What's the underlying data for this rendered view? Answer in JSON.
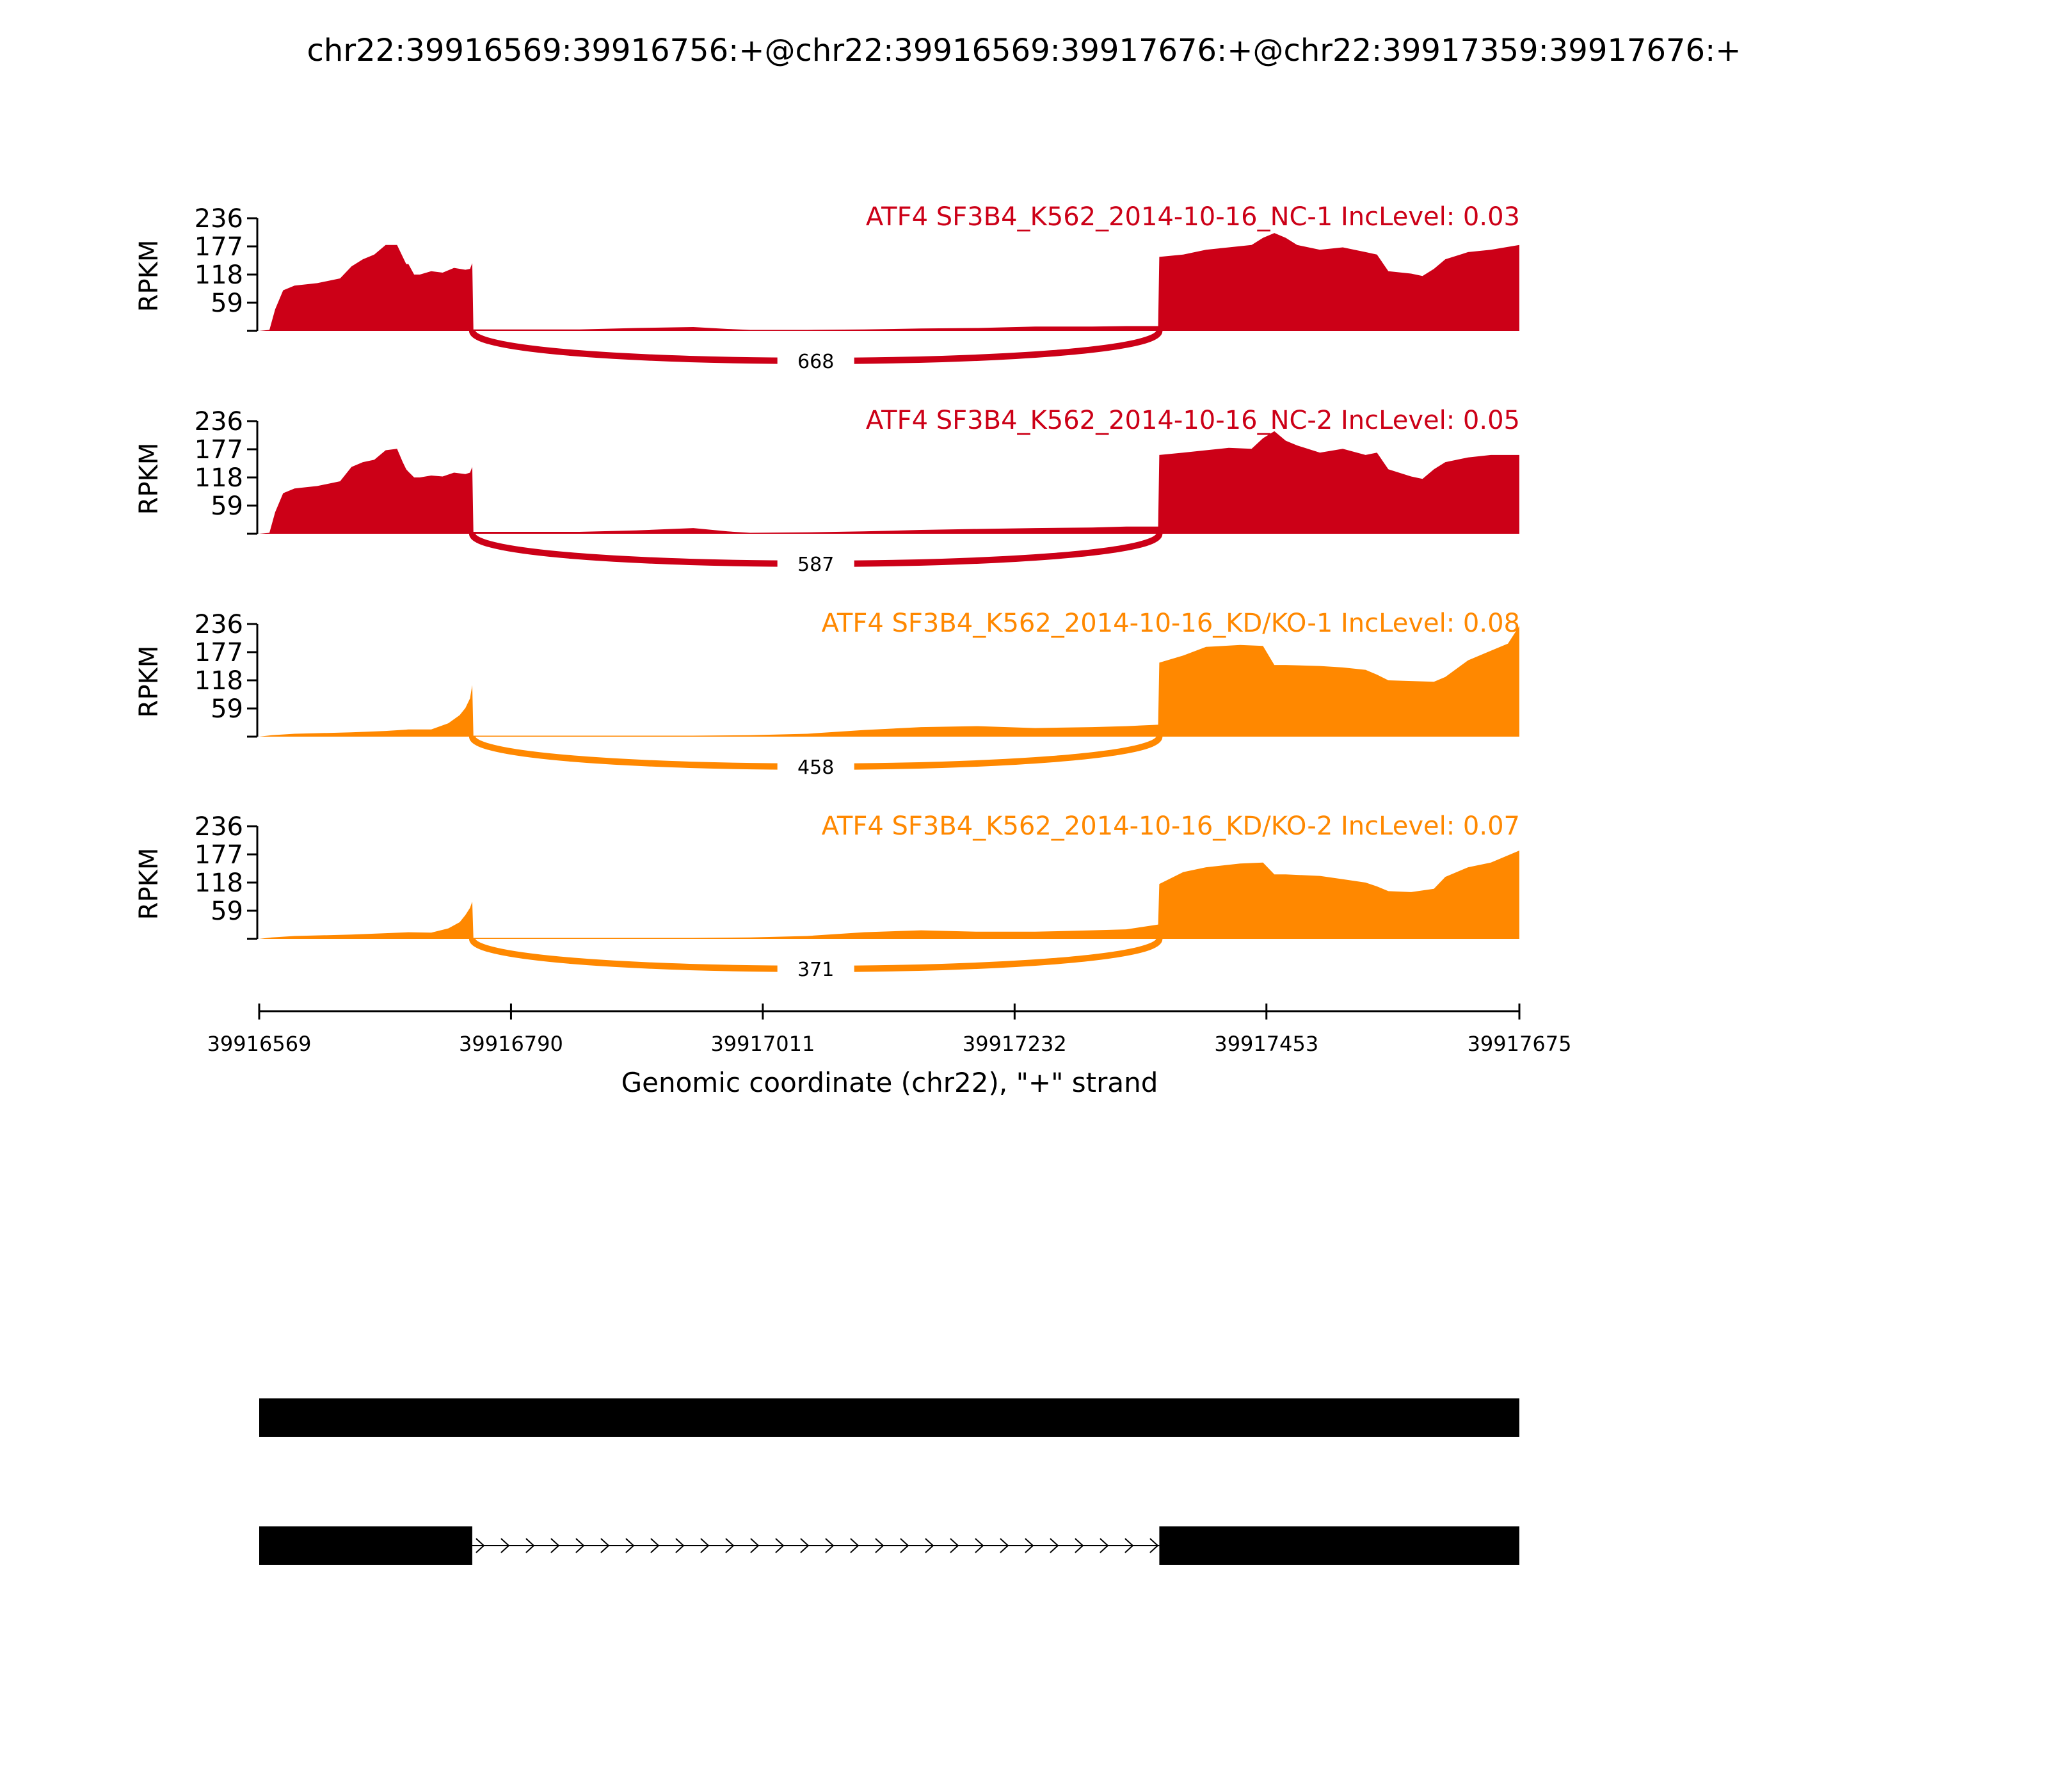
{
  "title": "chr22:39916569:39916756:+@chr22:39916569:39917676:+@chr22:39917359:39917676:+",
  "colors": {
    "nc": "#cc0017",
    "kd": "#ff8800",
    "axis": "#000000",
    "gene": "#000000"
  },
  "chart_data": {
    "type": "area",
    "title": "chr22:39916569:39916756:+@chr22:39916569:39917676:+@chr22:39917359:39917676:+",
    "xlabel": "Genomic coordinate (chr22), \"+\" strand",
    "ylabel": "RPKM",
    "xlim": [
      39916569,
      39917675
    ],
    "ylim": [
      0,
      236
    ],
    "xticks": [
      "39916569",
      "39916790",
      "39917011",
      "39917232",
      "39917453",
      "39917675"
    ],
    "yticks": [
      "59",
      "118",
      "177",
      "236"
    ],
    "series": [
      {
        "name": "ATF4 SF3B4_K562_2014-10-16_NC-1 IncLevel: 0.03",
        "group": "nc",
        "junction": {
          "start": 39916756,
          "end": 39917359,
          "count": "668"
        },
        "x": [
          39916569,
          39916578,
          39916583,
          39916590,
          39916600,
          39916620,
          39916640,
          39916650,
          39916660,
          39916670,
          39916680,
          39916690,
          39916695,
          39916698,
          39916700,
          39916705,
          39916710,
          39916720,
          39916730,
          39916740,
          39916750,
          39916754,
          39916756,
          39916757,
          39916780,
          39916800,
          39916850,
          39916900,
          39916950,
          39916980,
          39917000,
          39917050,
          39917100,
          39917150,
          39917200,
          39917250,
          39917300,
          39917330,
          39917358,
          39917359,
          39917380,
          39917400,
          39917420,
          39917440,
          39917450,
          39917460,
          39917470,
          39917480,
          39917500,
          39917520,
          39917540,
          39917550,
          39917560,
          39917580,
          39917590,
          39917600,
          39917610,
          39917630,
          39917650,
          39917675
        ],
        "y": [
          0,
          2,
          45,
          85,
          95,
          100,
          110,
          135,
          150,
          160,
          180,
          180,
          155,
          140,
          140,
          118,
          118,
          125,
          122,
          132,
          128,
          130,
          142,
          3,
          3,
          3,
          3,
          6,
          8,
          4,
          2,
          2,
          3,
          5,
          6,
          9,
          9,
          10,
          10,
          155,
          160,
          170,
          175,
          180,
          195,
          205,
          195,
          180,
          170,
          175,
          165,
          160,
          125,
          120,
          115,
          130,
          150,
          165,
          170,
          180
        ]
      },
      {
        "name": "ATF4 SF3B4_K562_2014-10-16_NC-2 IncLevel: 0.05",
        "group": "nc",
        "junction": {
          "start": 39916756,
          "end": 39917359,
          "count": "587"
        },
        "x": [
          39916569,
          39916578,
          39916583,
          39916590,
          39916600,
          39916620,
          39916640,
          39916650,
          39916660,
          39916670,
          39916680,
          39916690,
          39916695,
          39916698,
          39916700,
          39916705,
          39916710,
          39916720,
          39916730,
          39916740,
          39916750,
          39916754,
          39916756,
          39916757,
          39916780,
          39916800,
          39916850,
          39916900,
          39916950,
          39916980,
          39917000,
          39917050,
          39917100,
          39917150,
          39917200,
          39917250,
          39917300,
          39917330,
          39917358,
          39917359,
          39917380,
          39917400,
          39917420,
          39917440,
          39917450,
          39917460,
          39917470,
          39917480,
          39917500,
          39917520,
          39917540,
          39917550,
          39917560,
          39917580,
          39917590,
          39917600,
          39917610,
          39917630,
          39917650,
          39917675
        ],
        "y": [
          0,
          2,
          45,
          85,
          95,
          100,
          110,
          140,
          150,
          155,
          175,
          178,
          150,
          135,
          130,
          118,
          118,
          122,
          120,
          128,
          125,
          128,
          140,
          4,
          4,
          4,
          4,
          7,
          12,
          5,
          2,
          3,
          5,
          8,
          10,
          12,
          13,
          15,
          15,
          165,
          170,
          175,
          180,
          178,
          200,
          215,
          195,
          185,
          170,
          178,
          165,
          170,
          135,
          120,
          115,
          135,
          150,
          160,
          165,
          165
        ]
      },
      {
        "name": "ATF4 SF3B4_K562_2014-10-16_KD/KO-1 IncLevel: 0.08",
        "group": "kd",
        "junction": {
          "start": 39916756,
          "end": 39917359,
          "count": "458"
        },
        "x": [
          39916569,
          39916580,
          39916600,
          39916650,
          39916680,
          39916700,
          39916720,
          39916735,
          39916745,
          39916750,
          39916754,
          39916756,
          39916757,
          39916800,
          39916900,
          39916950,
          39917000,
          39917050,
          39917100,
          39917150,
          39917200,
          39917250,
          39917300,
          39917330,
          39917358,
          39917359,
          39917380,
          39917400,
          39917430,
          39917450,
          39917460,
          39917470,
          39917500,
          39917520,
          39917540,
          39917550,
          39917560,
          39917600,
          39917610,
          39917630,
          39917650,
          39917665,
          39917675
        ],
        "y": [
          0,
          3,
          6,
          9,
          12,
          15,
          15,
          28,
          45,
          60,
          80,
          108,
          2,
          2,
          2,
          2,
          3,
          6,
          14,
          20,
          22,
          18,
          20,
          22,
          25,
          155,
          170,
          188,
          192,
          190,
          150,
          150,
          148,
          145,
          140,
          130,
          118,
          115,
          125,
          160,
          180,
          195,
          232
        ]
      },
      {
        "name": "ATF4 SF3B4_K562_2014-10-16_KD/KO-2 IncLevel: 0.07",
        "group": "kd",
        "junction": {
          "start": 39916756,
          "end": 39917359,
          "count": "371"
        },
        "x": [
          39916569,
          39916580,
          39916600,
          39916650,
          39916680,
          39916700,
          39916720,
          39916735,
          39916745,
          39916750,
          39916754,
          39916756,
          39916757,
          39916800,
          39916900,
          39916950,
          39917000,
          39917050,
          39917100,
          39917150,
          39917200,
          39917250,
          39917300,
          39917330,
          39917358,
          39917359,
          39917380,
          39917400,
          39917430,
          39917450,
          39917460,
          39917470,
          39917500,
          39917520,
          39917540,
          39917550,
          39917560,
          39917580,
          39917600,
          39917610,
          39917630,
          39917650,
          39917665,
          39917675
        ],
        "y": [
          0,
          3,
          6,
          9,
          12,
          14,
          13,
          22,
          35,
          50,
          65,
          78,
          2,
          2,
          2,
          2,
          3,
          6,
          14,
          18,
          15,
          15,
          18,
          20,
          30,
          115,
          140,
          150,
          158,
          160,
          135,
          135,
          132,
          125,
          118,
          110,
          100,
          98,
          105,
          130,
          150,
          160,
          175,
          185
        ]
      }
    ],
    "gene_structures": [
      {
        "exons": [
          [
            39916569,
            39917675
          ]
        ]
      },
      {
        "exons": [
          [
            39916569,
            39916756
          ],
          [
            39917359,
            39917675
          ]
        ]
      }
    ]
  }
}
